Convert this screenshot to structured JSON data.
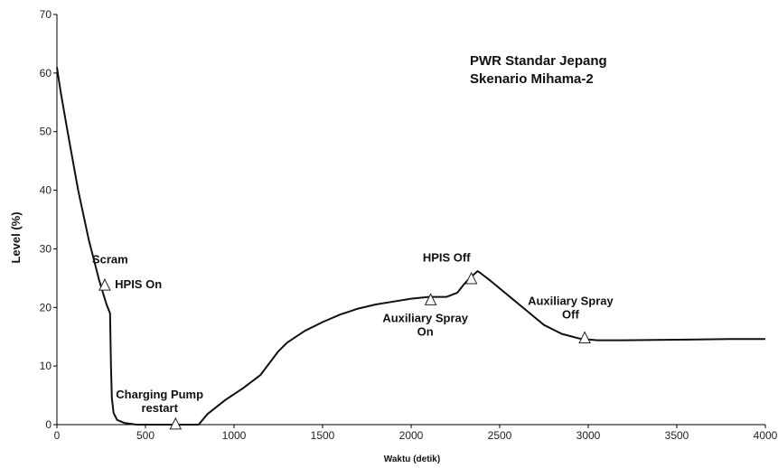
{
  "chart_data": {
    "type": "line",
    "title_lines": [
      "PWR Standar Jepang",
      "Skenario Mihama-2"
    ],
    "xlabel": "Waktu (detik)",
    "ylabel": "Level (%)",
    "xlim": [
      0,
      4000
    ],
    "ylim": [
      0,
      70
    ],
    "xticks": [
      0,
      500,
      1000,
      1500,
      2000,
      2500,
      3000,
      3500,
      4000
    ],
    "yticks": [
      0,
      10,
      20,
      30,
      40,
      50,
      60,
      70
    ],
    "grid": false,
    "legend": "none",
    "line_color": "#111111",
    "series": [
      {
        "x": [
          0,
          20,
          60,
          120,
          180,
          240,
          280,
          300,
          305,
          310,
          320,
          340,
          380,
          450,
          550,
          650,
          700,
          750,
          800,
          850,
          950,
          1050,
          1150,
          1200,
          1250,
          1300,
          1400,
          1500,
          1600,
          1700,
          1800,
          1900,
          2000,
          2100,
          2200,
          2260,
          2300,
          2330,
          2360,
          2375,
          2390,
          2450,
          2550,
          2650,
          2750,
          2850,
          2950,
          3050,
          3200,
          3500,
          3800,
          4000
        ],
        "y": [
          61,
          57,
          50,
          40,
          31.5,
          24.5,
          20.5,
          19,
          10,
          4.5,
          2,
          0.8,
          0.3,
          0,
          0,
          0,
          0,
          0,
          0,
          1.8,
          4.2,
          6.2,
          8.5,
          10.5,
          12.5,
          14,
          16,
          17.5,
          18.8,
          19.8,
          20.5,
          21,
          21.5,
          21.8,
          21.8,
          22.5,
          24,
          25,
          25.8,
          26.2,
          25.9,
          24.5,
          22,
          19.5,
          17,
          15.5,
          14.7,
          14.4,
          14.4,
          14.5,
          14.6,
          14.6
        ]
      }
    ],
    "markers": [
      {
        "x": 270,
        "y": 23.8
      },
      {
        "x": 670,
        "y": 0.1
      },
      {
        "x": 2110,
        "y": 21.3
      },
      {
        "x": 2340,
        "y": 24.9
      },
      {
        "x": 2980,
        "y": 14.8
      }
    ],
    "annotations": [
      {
        "lines": [
          "Scram"
        ],
        "x": 300,
        "y": 27.5
      },
      {
        "lines": [
          "HPIS On"
        ],
        "x": 460,
        "y": 23.3
      },
      {
        "lines": [
          "Charging Pump",
          "restart"
        ],
        "x": 580,
        "y": 4.5
      },
      {
        "lines": [
          "HPIS Off"
        ],
        "x": 2200,
        "y": 27.8
      },
      {
        "lines": [
          "Auxiliary Spray",
          "On"
        ],
        "x": 2080,
        "y": 17.5
      },
      {
        "lines": [
          "Auxiliary Spray",
          "Off"
        ],
        "x": 2900,
        "y": 20.4
      }
    ]
  }
}
